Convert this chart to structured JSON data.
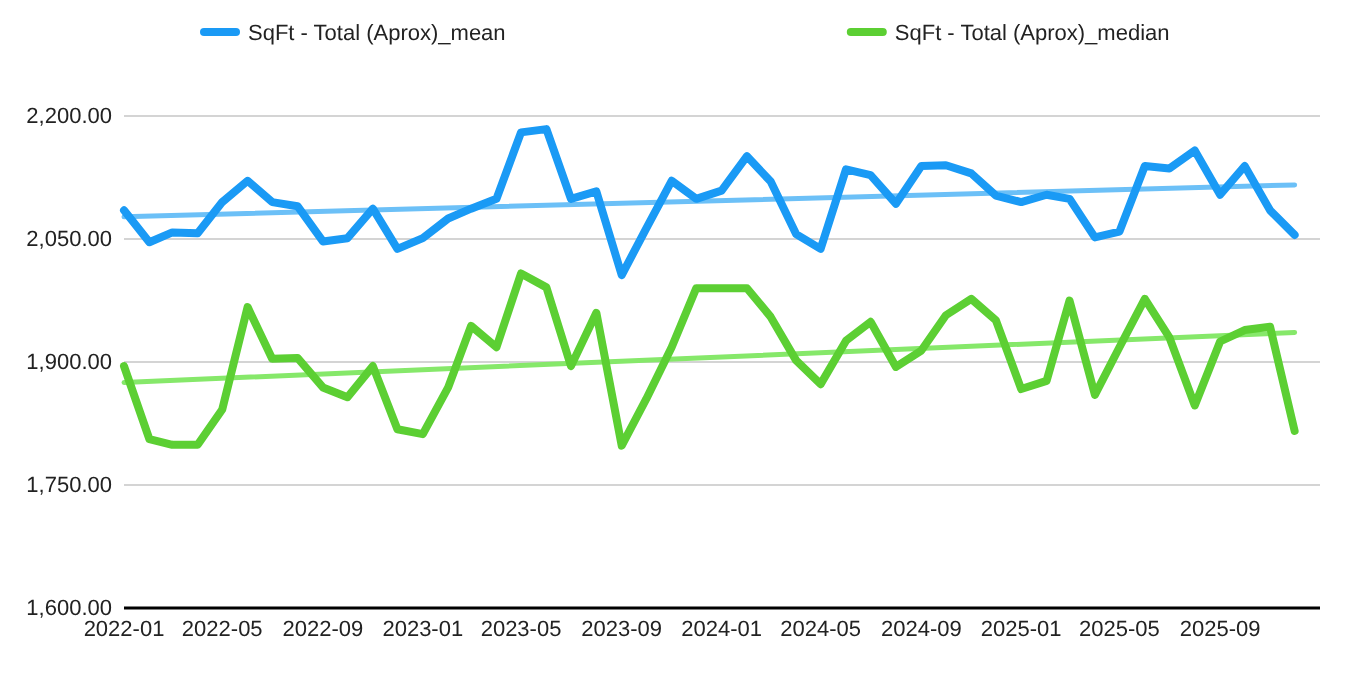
{
  "chart_data": {
    "type": "line",
    "x": [
      "2022-01",
      "2022-02",
      "2022-03",
      "2022-04",
      "2022-05",
      "2022-06",
      "2022-07",
      "2022-08",
      "2022-09",
      "2022-10",
      "2022-11",
      "2022-12",
      "2023-01",
      "2023-02",
      "2023-03",
      "2023-04",
      "2023-05",
      "2023-06",
      "2023-07",
      "2023-08",
      "2023-09",
      "2023-10",
      "2023-11",
      "2023-12",
      "2024-01",
      "2024-02",
      "2024-03",
      "2024-04",
      "2024-05",
      "2024-06",
      "2024-07",
      "2024-08",
      "2024-09",
      "2024-10",
      "2024-11",
      "2024-12",
      "2025-01",
      "2025-02",
      "2025-03",
      "2025-04",
      "2025-05",
      "2025-06",
      "2025-07",
      "2025-08",
      "2025-09",
      "2025-10",
      "2025-11",
      "2025-12"
    ],
    "series": [
      {
        "name": "SqFt - Total (Aprox)_mean",
        "color": "#1a9af5",
        "values": [
          2085,
          2046,
          2058,
          2057,
          2095,
          2121,
          2095,
          2090,
          2047,
          2051,
          2087,
          2038,
          2051,
          2075,
          2087,
          2099,
          2180,
          2184,
          2099,
          2108,
          2006,
          2063,
          2121,
          2099,
          2109,
          2151,
          2120,
          2056,
          2038,
          2135,
          2128,
          2093,
          2139,
          2140,
          2130,
          2103,
          2095,
          2104,
          2099,
          2052,
          2059,
          2139,
          2136,
          2158,
          2104,
          2139,
          2085,
          2055
        ]
      },
      {
        "name": "SqFt - Total (Aprox)_median",
        "color": "#5ccf33",
        "values": [
          1895,
          1806,
          1799,
          1799,
          1842,
          1967,
          1904,
          1905,
          1869,
          1857,
          1895,
          1818,
          1812,
          1869,
          1944,
          1918,
          2008,
          1991,
          1895,
          1960,
          1798,
          1855,
          1918,
          1990,
          1990,
          1990,
          1955,
          1902,
          1873,
          1926,
          1949,
          1894,
          1914,
          1957,
          1977,
          1951,
          1867,
          1877,
          1975,
          1860,
          1918,
          1977,
          1930,
          1847,
          1925,
          1939,
          1943,
          1816
        ]
      },
      {
        "type": "line",
        "color": "#6cc0f7",
        "x": [
          "2022-01",
          "2025-12"
        ],
        "values": [
          2077,
          2116
        ]
      },
      {
        "type": "line",
        "color": "#86e86a",
        "x": [
          "2022-01",
          "2025-12"
        ],
        "values": [
          1875,
          1936
        ]
      }
    ],
    "xlim": [
      "2022-01",
      "2026-01"
    ],
    "xticks": [
      "2022-01",
      "2022-05",
      "2022-09",
      "2023-01",
      "2023-05",
      "2023-09",
      "2024-01",
      "2024-05",
      "2024-09",
      "2025-01",
      "2025-05",
      "2025-09"
    ],
    "ylim": [
      1600,
      2200
    ],
    "yticks": [
      {
        "value": 1600,
        "label": "1,600.00"
      },
      {
        "value": 1750,
        "label": "1,750.00"
      },
      {
        "value": 1900,
        "label": "1,900.00"
      },
      {
        "value": 2050,
        "label": "2,050.00"
      },
      {
        "value": 2200,
        "label": "2,200.00"
      }
    ],
    "grid": "y",
    "legend": "top",
    "line_style": "solid",
    "marker": "none"
  }
}
